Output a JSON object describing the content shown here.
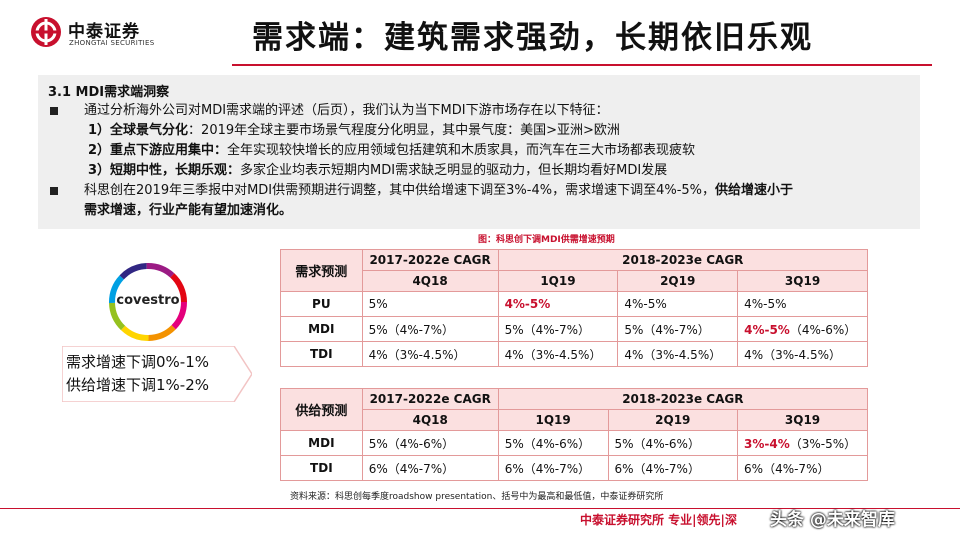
{
  "header": {
    "brand_cn": "中泰证券",
    "brand_en": "ZHONGTAI SECURITIES",
    "title": "需求端：建筑需求强劲，长期依旧乐观"
  },
  "panel": {
    "heading": "3.1 MDI需求端洞察",
    "bullet1": "通过分析海外公司对MDI需求端的评述（后页），我们认为当下MDI下游市场存在以下特征：",
    "sub1_key": "1）全球景气分化",
    "sub1_text": "：2019年全球主要市场景气程度分化明显，其中景气度：美国>亚洲>欧洲",
    "sub2_key": "2）重点下游应用集中：",
    "sub2_text": "全年实现较快增长的应用领域包括建筑和木质家具，而汽车在三大市场都表现疲软",
    "sub3_key": "3）短期中性，长期乐观：",
    "sub3_text": "多家企业均表示短期内MDI需求缺乏明显的驱动力，但长期均看好MDI发展",
    "bullet2_text": "科思创在2019年三季报中对MDI供需预期进行调整，其中供给增速下调至3%-4%，需求增速下调至4%-5%，",
    "bullet2_bold_a": "供给增速小于",
    "bullet2_bold_b": "需求增速，行业产能有望加速消化。"
  },
  "left": {
    "logo_text": "covestro",
    "note1": "需求增速下调0%-1%",
    "note2": "供给增速下调1%-2%"
  },
  "caption": "图：科思创下调MDI供需增速预期",
  "demand_table": {
    "corner": "需求预测",
    "group1": "2017-2022e CAGR",
    "group2": "2018-2023e CAGR",
    "cols": [
      "4Q18",
      "1Q19",
      "2Q19",
      "3Q19"
    ],
    "rows": [
      {
        "name": "PU",
        "c1": "5%",
        "c2": "4%-5%",
        "c3": "4%-5%",
        "c4a": "4%-5%",
        "c4b": ""
      },
      {
        "name": "MDI",
        "c1": "5%（4%-7%）",
        "c2": "5%（4%-7%）",
        "c3": "5%（4%-7%）",
        "c4a": "4%-5%",
        "c4b": "（4%-6%）"
      },
      {
        "name": "TDI",
        "c1": "4%（3%-4.5%）",
        "c2": "4%（3%-4.5%）",
        "c3": "4%（3%-4.5%）",
        "c4a": "4%（3%-4.5%）",
        "c4b": ""
      }
    ]
  },
  "supply_table": {
    "corner": "供给预测",
    "group1": "2017-2022e CAGR",
    "group2": "2018-2023e CAGR",
    "cols": [
      "4Q18",
      "1Q19",
      "2Q19",
      "3Q19"
    ],
    "rows": [
      {
        "name": "MDI",
        "c1": "5%（4%-6%）",
        "c2": "5%（4%-6%）",
        "c3": "5%（4%-6%）",
        "c4a": "3%-4%",
        "c4b": "（3%-5%）"
      },
      {
        "name": "TDI",
        "c1": "6%（4%-7%）",
        "c2": "6%（4%-7%）",
        "c3": "6%（4%-7%）",
        "c4a": "6%（4%-7%）",
        "c4b": ""
      }
    ]
  },
  "source": "资料来源：科思创每季度roadshow presentation、括号中为最高和最低值，中泰证券研究所",
  "footer": {
    "text": "中泰证券研究所 专业|领先|深",
    "watermark": "头条 @未来智库"
  },
  "colors": {
    "accent": "#c8102e",
    "table_header": "#fbe0e0",
    "panel_bg": "#efefef"
  }
}
